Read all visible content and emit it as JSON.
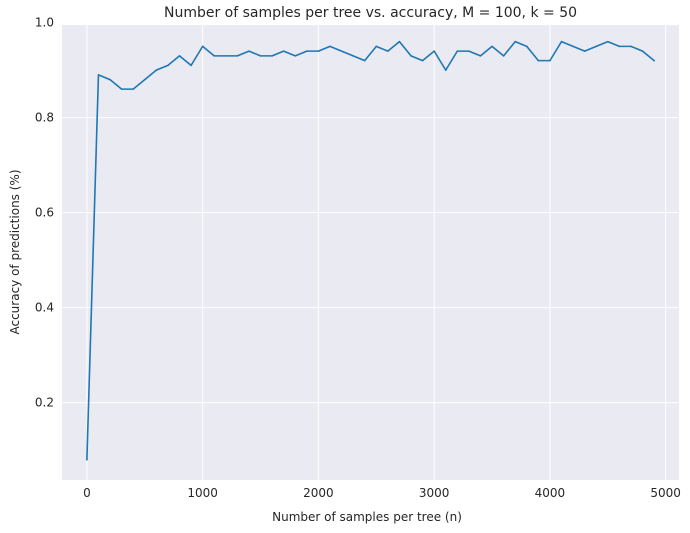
{
  "chart_data": {
    "type": "line",
    "title": "Number of samples per tree vs. accuracy, M = 100, k = 50",
    "xlabel": "Number of samples per tree (n)",
    "ylabel": "Accuracy of predictions (%)",
    "xlim": [
      -215,
      5115
    ],
    "ylim": [
      0.037,
      0.995
    ],
    "xticks": [
      0,
      1000,
      2000,
      3000,
      4000,
      5000
    ],
    "xtick_labels": [
      "0",
      "1000",
      "2000",
      "3000",
      "4000",
      "5000"
    ],
    "yticks": [
      0.2,
      0.4,
      0.6,
      0.8,
      1.0
    ],
    "ytick_labels": [
      "0.2",
      "0.4",
      "0.6",
      "0.8",
      "1.0"
    ],
    "grid": true,
    "background": "#eaeaf2",
    "series": [
      {
        "color": "#1f77b4",
        "x": [
          0,
          100,
          200,
          300,
          400,
          500,
          600,
          700,
          800,
          900,
          1000,
          1100,
          1200,
          1300,
          1400,
          1500,
          1600,
          1700,
          1800,
          1900,
          2000,
          2100,
          2200,
          2300,
          2400,
          2500,
          2600,
          2700,
          2800,
          2900,
          3000,
          3100,
          3200,
          3300,
          3400,
          3500,
          3600,
          3700,
          3800,
          3900,
          4000,
          4100,
          4200,
          4300,
          4400,
          4500,
          4600,
          4700,
          4800,
          4900
        ],
        "y": [
          0.08,
          0.89,
          0.88,
          0.86,
          0.86,
          0.88,
          0.9,
          0.91,
          0.93,
          0.91,
          0.95,
          0.93,
          0.93,
          0.93,
          0.94,
          0.93,
          0.93,
          0.94,
          0.93,
          0.94,
          0.94,
          0.95,
          0.94,
          0.93,
          0.92,
          0.95,
          0.94,
          0.96,
          0.93,
          0.92,
          0.94,
          0.9,
          0.94,
          0.94,
          0.93,
          0.95,
          0.93,
          0.96,
          0.95,
          0.92,
          0.92,
          0.96,
          0.95,
          0.94,
          0.95,
          0.96,
          0.95,
          0.95,
          0.94,
          0.92
        ]
      }
    ]
  }
}
